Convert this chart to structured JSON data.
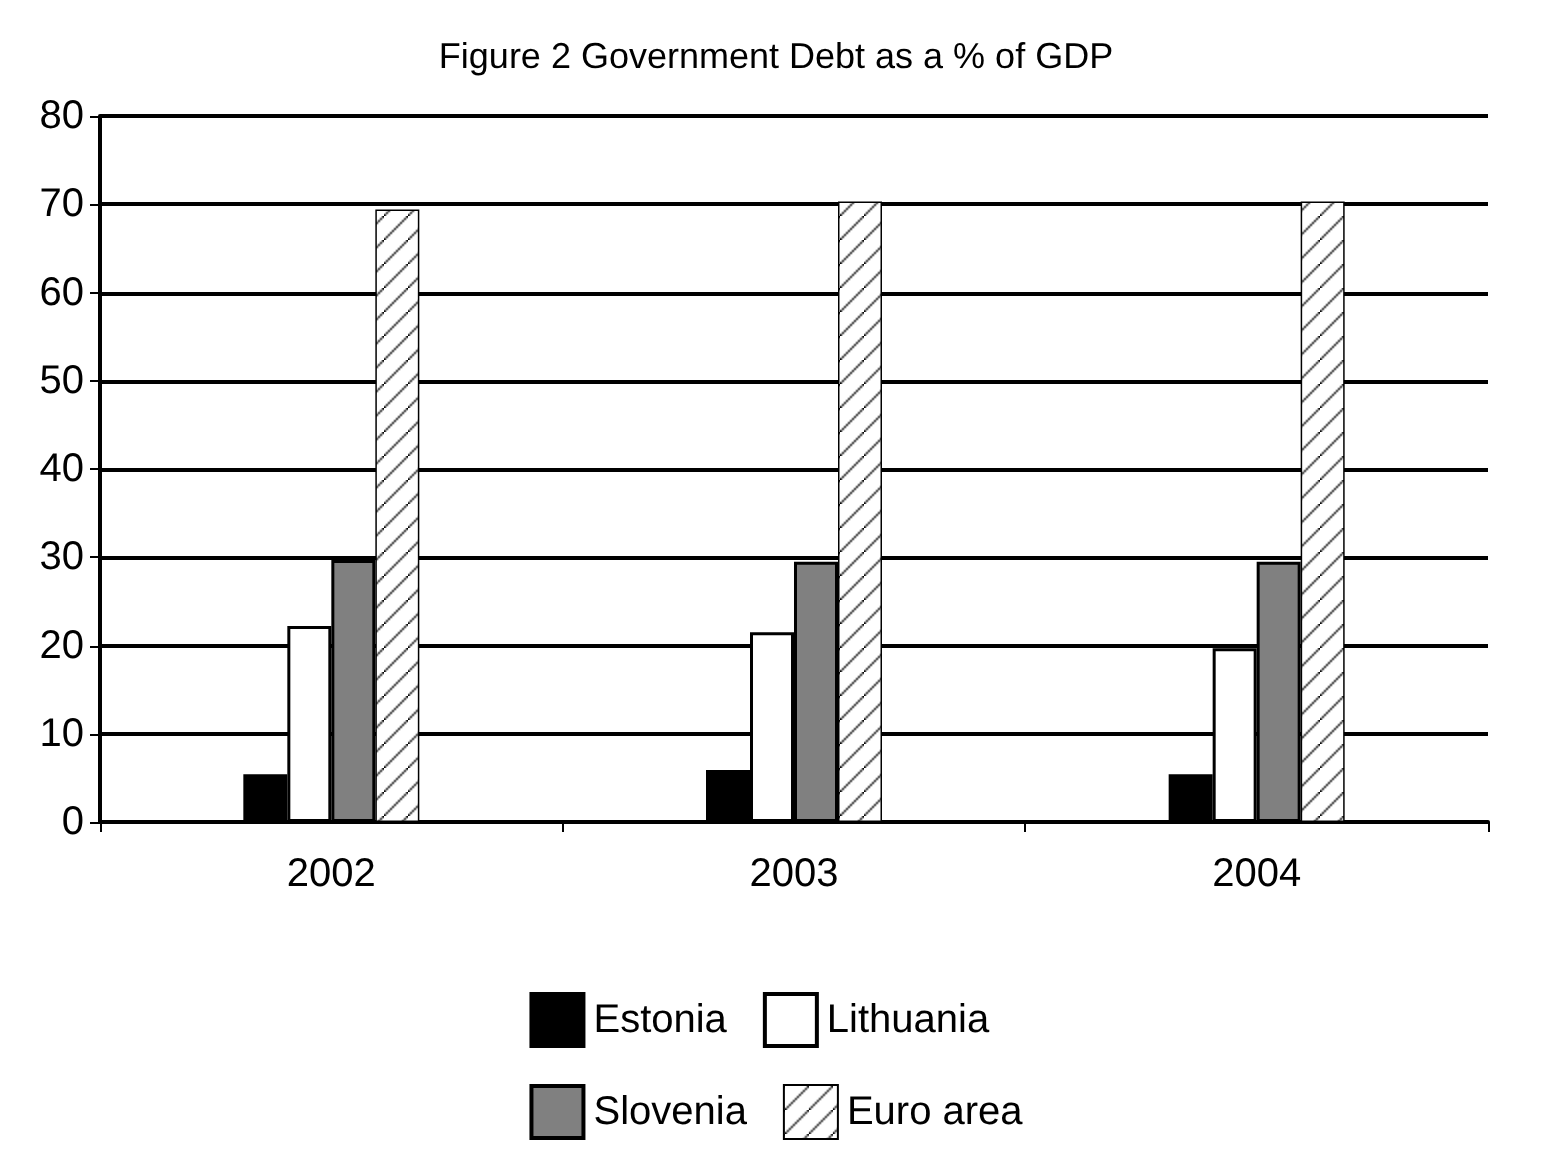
{
  "chart_data": {
    "type": "bar",
    "title": "Figure 2 Government Debt as a % of GDP",
    "categories": [
      "2002",
      "2003",
      "2004"
    ],
    "series": [
      {
        "name": "Estonia",
        "color": "#000000",
        "values": [
          5.4,
          5.9,
          5.4
        ]
      },
      {
        "name": "Lithuania",
        "color": "#ffffff",
        "values": [
          22.2,
          21.5,
          19.7
        ]
      },
      {
        "name": "Slovenia",
        "color": "#808080",
        "values": [
          29.7,
          29.5,
          29.5
        ]
      },
      {
        "name": "Euro area",
        "color": "#ffffff",
        "values": [
          69.4,
          70.3,
          70.3
        ]
      }
    ],
    "ylim": [
      0,
      80
    ],
    "yticks": [
      0,
      10,
      20,
      30,
      40,
      50,
      60,
      70,
      80
    ],
    "grid": "y",
    "legend": "bottom"
  }
}
